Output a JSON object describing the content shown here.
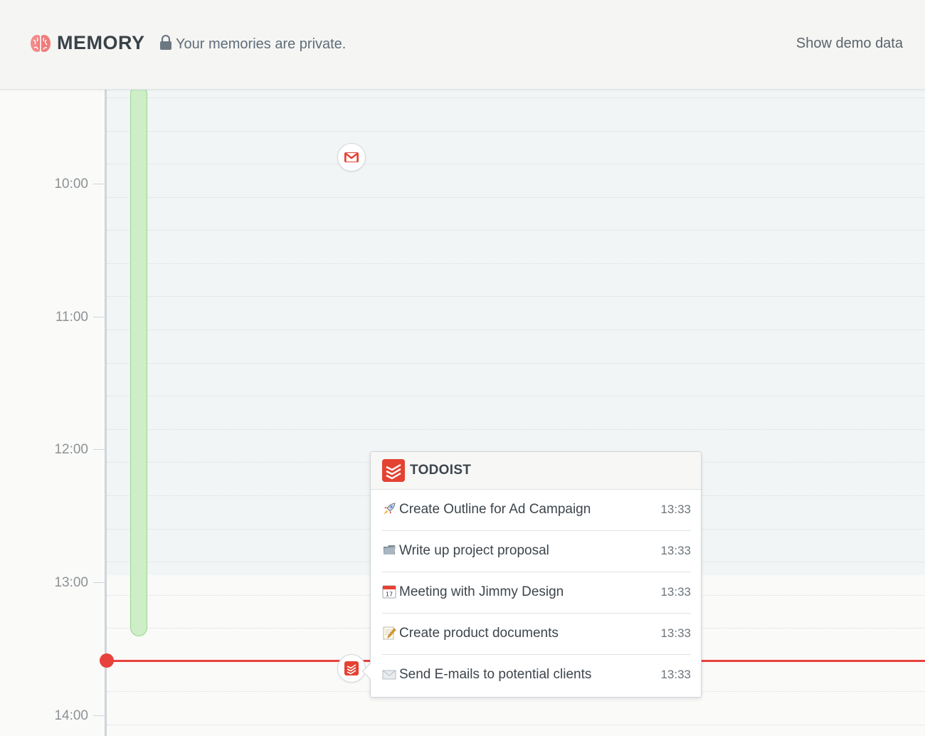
{
  "header": {
    "app_title": "MEMORY",
    "privacy_text": "Your memories are private.",
    "demo_button": "Show demo data",
    "logo_icon": "brain-icon",
    "lock_icon": "lock-icon"
  },
  "timeline": {
    "hours": [
      "10:00",
      "11:00",
      "12:00",
      "13:00",
      "14:00"
    ],
    "now_indicator_color": "#e8423d",
    "activity_color": "#cdeec7",
    "events": [
      {
        "app": "gmail",
        "icon": "gmail-icon"
      },
      {
        "app": "todoist",
        "icon": "todoist-icon"
      }
    ]
  },
  "popup": {
    "title": "TODOIST",
    "logo_icon": "todoist-icon",
    "tasks": [
      {
        "icon": "rocket-icon",
        "label": "Create Outline for Ad Campaign",
        "time": "13:33"
      },
      {
        "icon": "folder-icon",
        "label": "Write up project proposal",
        "time": "13:33"
      },
      {
        "icon": "calendar-icon",
        "label": "Meeting with Jimmy Design",
        "time": "13:33"
      },
      {
        "icon": "memo-icon",
        "label": "Create product documents",
        "time": "13:33"
      },
      {
        "icon": "envelope-icon",
        "label": "Send E-mails to potential clients",
        "time": "13:33"
      }
    ]
  },
  "colors": {
    "accent_red": "#e44232",
    "activity_green": "#cdeec7"
  }
}
